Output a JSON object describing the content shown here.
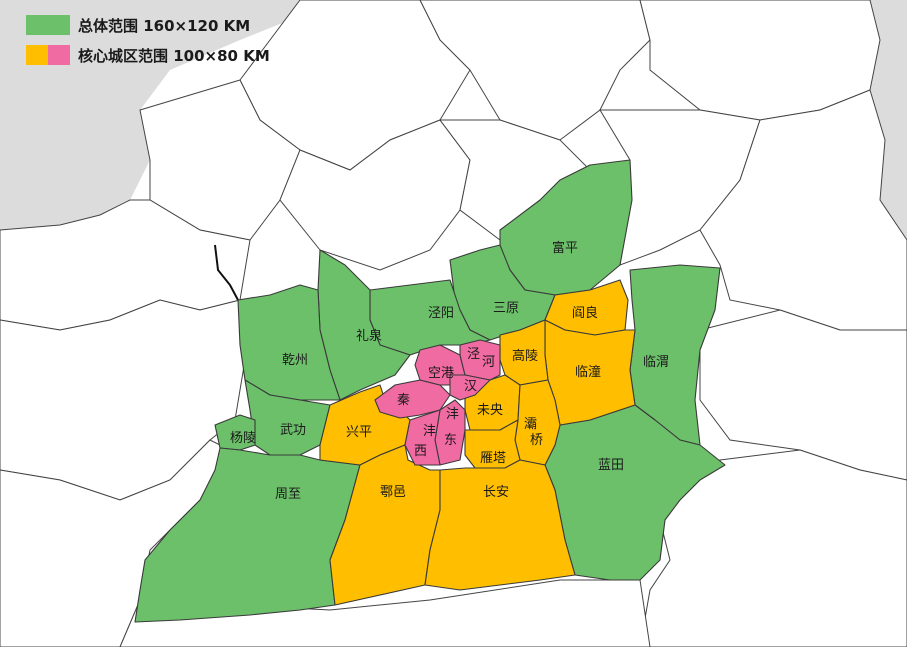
{
  "legend": {
    "overall": {
      "label": "总体范围 160×120 KM",
      "color": "#6cc06a"
    },
    "core": {
      "label": "核心城区范围 100×80 KM",
      "colors": [
        "#ffbf00",
        "#f06ba2"
      ]
    }
  },
  "colors": {
    "green": "#6cc06a",
    "yellow": "#ffbf00",
    "pink": "#f06ba2",
    "gray": "#dcdcdc"
  },
  "regions": {
    "fuping": "富平",
    "jingyang": "泾阳",
    "sanyuan": "三原",
    "liquan": "礼泉",
    "qianzhou": "乾州",
    "wugong": "武功",
    "yangling": "杨陵",
    "xingping": "兴平",
    "qin": "秦",
    "konggang": "空港",
    "jing": "泾",
    "he": "河",
    "han": "汉",
    "feng_d": "沣",
    "dong": "东",
    "feng_x": "沣",
    "xi": "西",
    "gaoling": "高陵",
    "weiyang": "未央",
    "baqiao_1": "灞",
    "baqiao_2": "桥",
    "yanta": "雁塔",
    "yanliang": "阎良",
    "lintong": "临潼",
    "linwei": "临渭",
    "lantian": "蓝田",
    "zhouzhi": "周至",
    "huyi": "鄠邑",
    "changan": "长安"
  }
}
